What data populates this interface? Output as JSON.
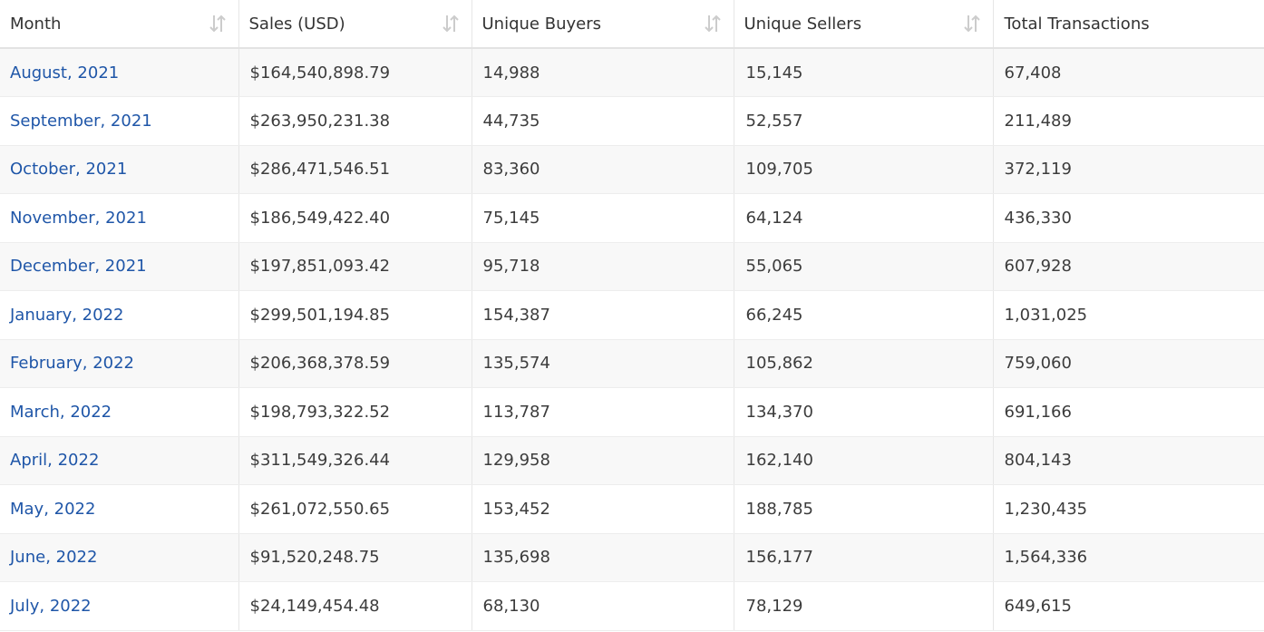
{
  "table": {
    "headers": [
      {
        "label": "Month",
        "sortable": true
      },
      {
        "label": "Sales (USD)",
        "sortable": true
      },
      {
        "label": "Unique Buyers",
        "sortable": true
      },
      {
        "label": "Unique Sellers",
        "sortable": true
      },
      {
        "label": "Total Transactions",
        "sortable": false
      }
    ],
    "rows": [
      {
        "month": "August, 2021",
        "sales": "$164,540,898.79",
        "buyers": "14,988",
        "sellers": "15,145",
        "transactions": "67,408"
      },
      {
        "month": "September, 2021",
        "sales": "$263,950,231.38",
        "buyers": "44,735",
        "sellers": "52,557",
        "transactions": "211,489"
      },
      {
        "month": "October, 2021",
        "sales": "$286,471,546.51",
        "buyers": "83,360",
        "sellers": "109,705",
        "transactions": "372,119"
      },
      {
        "month": "November, 2021",
        "sales": "$186,549,422.40",
        "buyers": "75,145",
        "sellers": "64,124",
        "transactions": "436,330"
      },
      {
        "month": "December, 2021",
        "sales": "$197,851,093.42",
        "buyers": "95,718",
        "sellers": "55,065",
        "transactions": "607,928"
      },
      {
        "month": "January, 2022",
        "sales": "$299,501,194.85",
        "buyers": "154,387",
        "sellers": "66,245",
        "transactions": "1,031,025"
      },
      {
        "month": "February, 2022",
        "sales": "$206,368,378.59",
        "buyers": "135,574",
        "sellers": "105,862",
        "transactions": "759,060"
      },
      {
        "month": "March, 2022",
        "sales": "$198,793,322.52",
        "buyers": "113,787",
        "sellers": "134,370",
        "transactions": "691,166"
      },
      {
        "month": "April, 2022",
        "sales": "$311,549,326.44",
        "buyers": "129,958",
        "sellers": "162,140",
        "transactions": "804,143"
      },
      {
        "month": "May, 2022",
        "sales": "$261,072,550.65",
        "buyers": "153,452",
        "sellers": "188,785",
        "transactions": "1,230,435"
      },
      {
        "month": "June, 2022",
        "sales": "$91,520,248.75",
        "buyers": "135,698",
        "sellers": "156,177",
        "transactions": "1,564,336"
      },
      {
        "month": "July, 2022",
        "sales": "$24,149,454.48",
        "buyers": "68,130",
        "sellers": "78,129",
        "transactions": "649,615"
      }
    ]
  },
  "colors": {
    "link": "#1f56a8",
    "stripe": "#f8f8f8",
    "sort_icon": "#cccccc"
  },
  "icons": {
    "sort": "sort-arrows-icon"
  }
}
